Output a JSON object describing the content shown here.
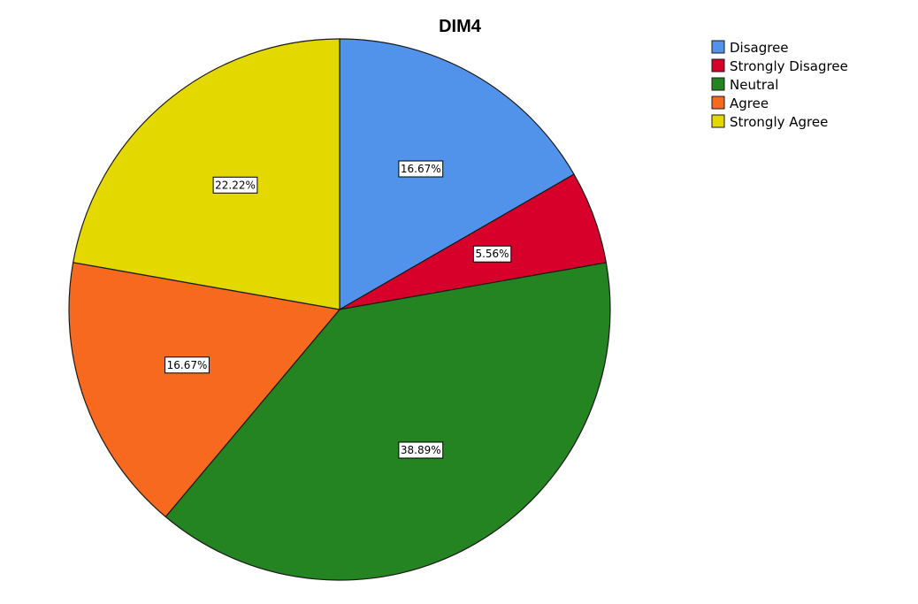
{
  "chart_data": {
    "type": "pie",
    "title": "DIM4",
    "legend_position": "top-right",
    "slices": [
      {
        "label": "Disagree",
        "value": 16.67,
        "display": "16.67%",
        "color": "#5193ea"
      },
      {
        "label": "Strongly Disagree",
        "value": 5.56,
        "display": "5.56%",
        "color": "#d7002b"
      },
      {
        "label": "Neutral",
        "value": 38.89,
        "display": "38.89%",
        "color": "#248421"
      },
      {
        "label": "Agree",
        "value": 16.67,
        "display": "16.67%",
        "color": "#f6691e"
      },
      {
        "label": "Strongly Agree",
        "value": 22.22,
        "display": "22.22%",
        "color": "#e3d800"
      }
    ]
  }
}
